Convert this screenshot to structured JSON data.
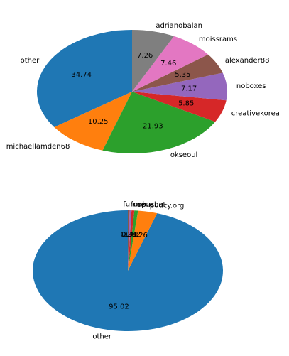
{
  "chart_data": [
    {
      "type": "pie",
      "categories": [
        "other",
        "michaellamden68",
        "okseoul",
        "creativekorea",
        "noboxes",
        "alexander88",
        "moissrams",
        "adrianobalan"
      ],
      "values": [
        34.74,
        10.25,
        21.93,
        5.85,
        7.17,
        5.35,
        7.46,
        7.26
      ],
      "colors": [
        "#1f77b4",
        "#ff7f0e",
        "#2ca02c",
        "#d62728",
        "#9467bd",
        "#8c564b",
        "#e377c2",
        "#7f7f7f"
      ]
    },
    {
      "type": "pie",
      "categories": [
        "other",
        "pudcy.org",
        "opusbot",
        "mvoe",
        "funk",
        "fun"
      ],
      "values": [
        95.02,
        3.26,
        0.62,
        0.48,
        0.33,
        0.29
      ],
      "colors": [
        "#1f77b4",
        "#ff7f0e",
        "#2ca02c",
        "#d62728",
        "#9467bd",
        "#8c564b"
      ]
    }
  ]
}
